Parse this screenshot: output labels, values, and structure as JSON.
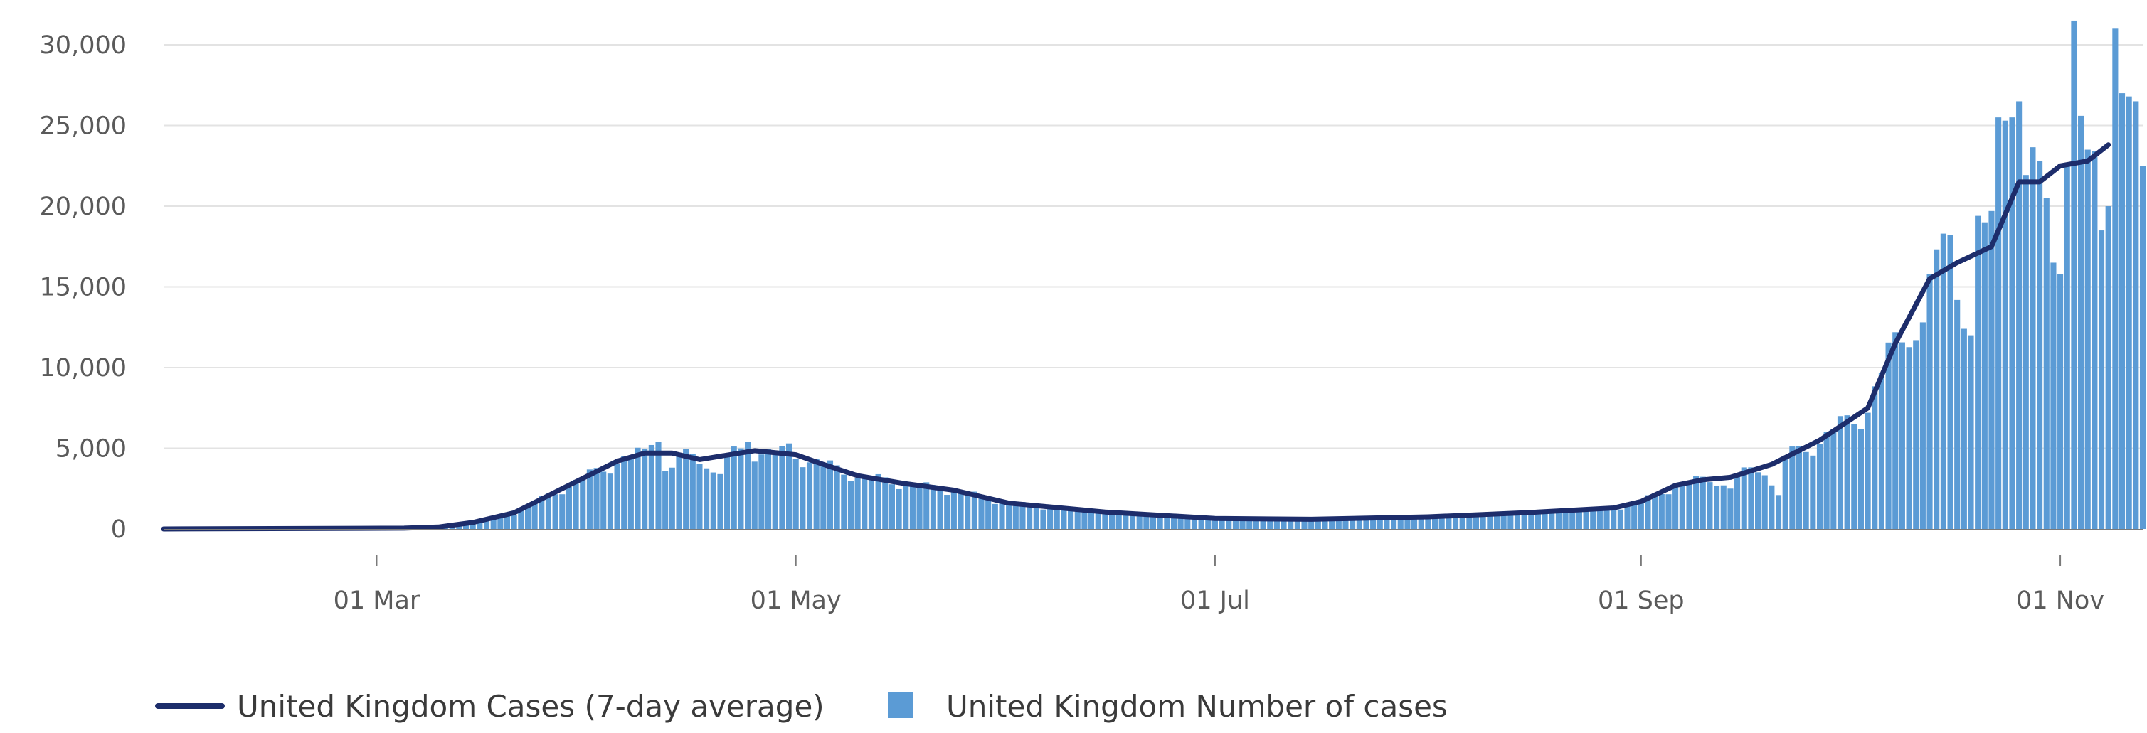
{
  "chart_data": {
    "type": "bar",
    "x_type": "date",
    "x_start": "2020-01-30",
    "x_end": "2020-11-13",
    "ylim": [
      0,
      32000
    ],
    "yticks": [
      0,
      5000,
      10000,
      15000,
      20000,
      25000,
      30000
    ],
    "ytick_labels": [
      "0",
      "5,000",
      "10,000",
      "15,000",
      "20,000",
      "25,000",
      "30,000"
    ],
    "xticks": [
      "2020-03-01",
      "2020-05-01",
      "2020-07-01",
      "2020-09-01",
      "2020-11-01"
    ],
    "xtick_labels": [
      "01 Mar",
      "01 May",
      "01 Jul",
      "01 Sep",
      "01 Nov"
    ],
    "grid": true,
    "legend_position": "bottom-left",
    "colors": {
      "bars": "#5b9bd5",
      "line": "#1d2d6b",
      "grid": "#e3e3e3",
      "axis": "#7a7a7a"
    },
    "series": [
      {
        "name": "United Kingdom Cases (7-day average)",
        "type": "line",
        "x_range": [
          "2020-01-30",
          "2020-11-08"
        ],
        "points": [
          [
            "2020-01-30",
            0
          ],
          [
            "2020-03-05",
            50
          ],
          [
            "2020-03-10",
            120
          ],
          [
            "2020-03-15",
            400
          ],
          [
            "2020-03-21",
            1000
          ],
          [
            "2020-03-28",
            2500
          ],
          [
            "2020-04-05",
            4200
          ],
          [
            "2020-04-09",
            4700
          ],
          [
            "2020-04-13",
            4700
          ],
          [
            "2020-04-17",
            4300
          ],
          [
            "2020-04-25",
            4850
          ],
          [
            "2020-05-01",
            4600
          ],
          [
            "2020-05-05",
            4000
          ],
          [
            "2020-05-10",
            3300
          ],
          [
            "2020-05-17",
            2800
          ],
          [
            "2020-05-24",
            2400
          ],
          [
            "2020-06-01",
            1600
          ],
          [
            "2020-06-15",
            1050
          ],
          [
            "2020-07-01",
            650
          ],
          [
            "2020-07-15",
            600
          ],
          [
            "2020-08-01",
            750
          ],
          [
            "2020-08-15",
            1000
          ],
          [
            "2020-08-28",
            1300
          ],
          [
            "2020-09-01",
            1700
          ],
          [
            "2020-09-06",
            2700
          ],
          [
            "2020-09-10",
            3050
          ],
          [
            "2020-09-14",
            3200
          ],
          [
            "2020-09-20",
            4000
          ],
          [
            "2020-09-27",
            5500
          ],
          [
            "2020-10-04",
            7500
          ],
          [
            "2020-10-08",
            11500
          ],
          [
            "2020-10-13",
            15500
          ],
          [
            "2020-10-17",
            16500
          ],
          [
            "2020-10-22",
            17500
          ],
          [
            "2020-10-26",
            21500
          ],
          [
            "2020-10-29",
            21500
          ],
          [
            "2020-11-01",
            22500
          ],
          [
            "2020-11-05",
            22800
          ],
          [
            "2020-11-08",
            23800
          ]
        ]
      },
      {
        "name": "United Kingdom Number of cases",
        "type": "bar",
        "x_range": [
          "2020-03-10",
          "2020-11-13"
        ],
        "overrides": [
          [
            "2020-11-03",
            31500
          ],
          [
            "2020-11-09",
            31000
          ],
          [
            "2020-10-26",
            26500
          ],
          [
            "2020-10-23",
            25500
          ],
          [
            "2020-10-24",
            25300
          ],
          [
            "2020-10-25",
            25500
          ],
          [
            "2020-11-10",
            27000
          ],
          [
            "2020-11-11",
            26800
          ],
          [
            "2020-11-12",
            26500
          ],
          [
            "2020-11-13",
            22500
          ],
          [
            "2020-11-07",
            18500
          ],
          [
            "2020-11-08",
            20000
          ],
          [
            "2020-10-31",
            16500
          ],
          [
            "2020-11-01",
            15800
          ],
          [
            "2020-11-02",
            22500
          ],
          [
            "2020-11-04",
            25600
          ],
          [
            "2020-11-05",
            23500
          ],
          [
            "2020-11-06",
            23400
          ],
          [
            "2020-10-11",
            11700
          ],
          [
            "2020-10-12",
            12800
          ],
          [
            "2020-10-18",
            12400
          ],
          [
            "2020-10-19",
            12000
          ],
          [
            "2020-10-20",
            19400
          ],
          [
            "2020-10-21",
            19000
          ],
          [
            "2020-10-22",
            19700
          ],
          [
            "2020-10-15",
            18300
          ],
          [
            "2020-10-16",
            18200
          ],
          [
            "2020-09-14",
            2500
          ],
          [
            "2020-09-13",
            2700
          ],
          [
            "2020-09-21",
            2100
          ],
          [
            "2020-09-20",
            2700
          ],
          [
            "2020-04-12",
            3600
          ],
          [
            "2020-04-13",
            3800
          ],
          [
            "2020-04-10",
            5200
          ],
          [
            "2020-04-11",
            5400
          ],
          [
            "2020-04-24",
            5400
          ],
          [
            "2020-04-30",
            5300
          ],
          [
            "2020-04-19",
            3500
          ],
          [
            "2020-04-20",
            3400
          ]
        ]
      }
    ]
  }
}
